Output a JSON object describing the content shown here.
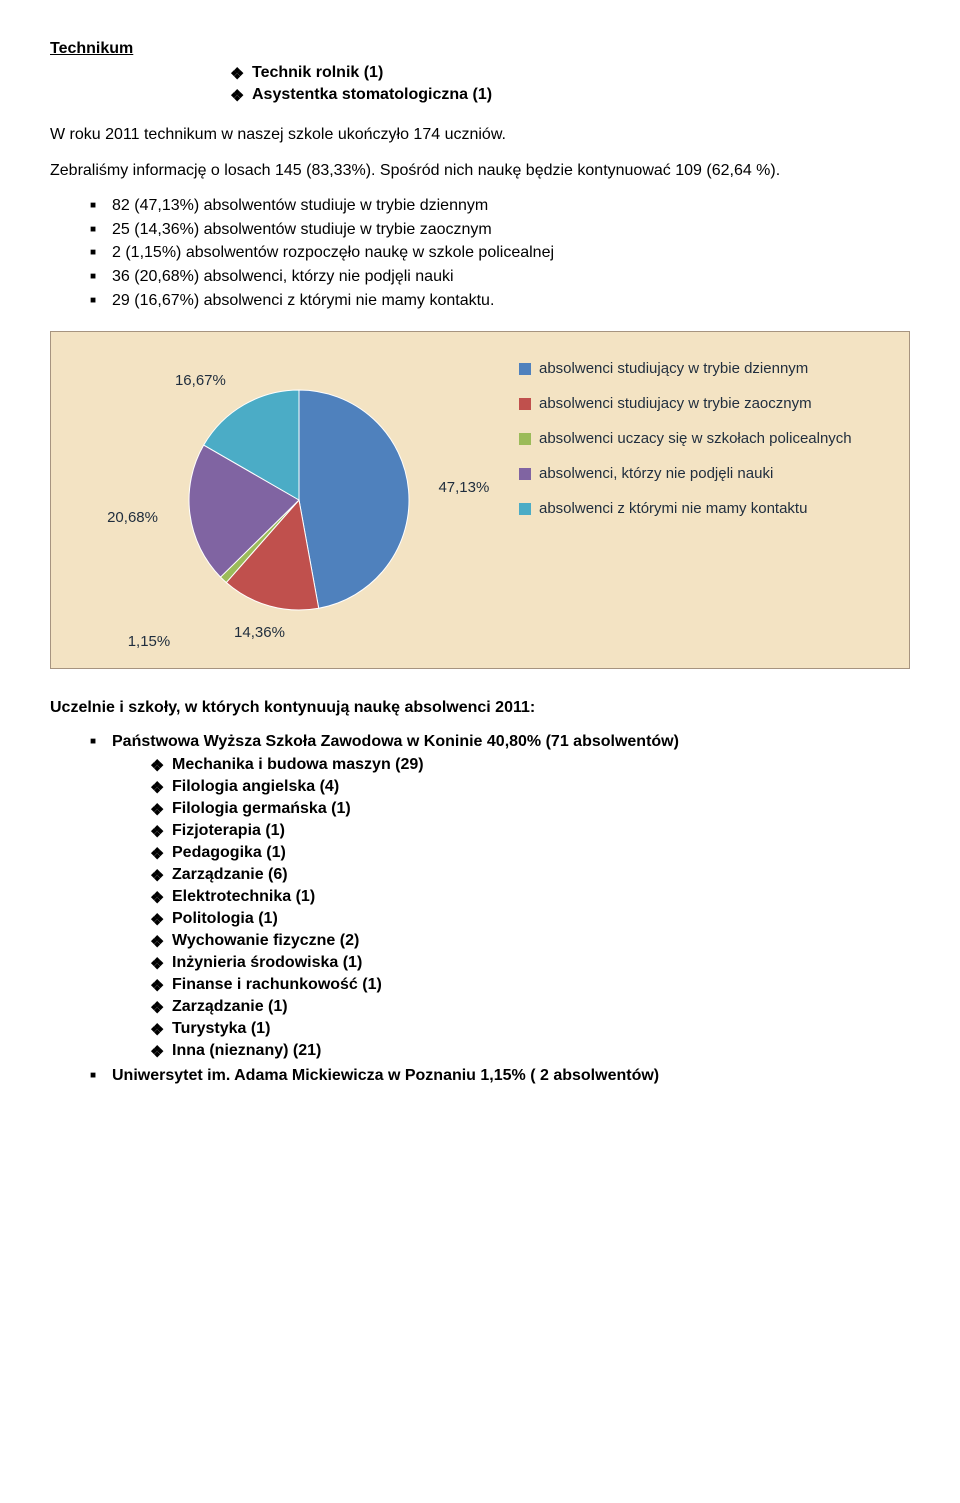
{
  "heading": "Technikum",
  "top_bullets": [
    "Technik rolnik (1)",
    "Asystentka stomatologiczna (1)"
  ],
  "para1": "W roku 2011 technikum w naszej szkole ukończyło 174 uczniów.",
  "para2": "Zebraliśmy informację o losach 145 (83,33%). Spośród nich naukę będzie kontynuować  109 (62,64 %).",
  "stats_bullets": [
    "82 (47,13%) absolwentów  studiuje w trybie dziennym",
    "25 (14,36%) absolwentów  studiuje w trybie zaocznym",
    "2 (1,15%)  absolwentów rozpoczęło naukę w szkole policealnej",
    "36 (20,68%) absolwenci, którzy nie podjęli nauki",
    "29 (16,67%) absolwenci z którymi nie mamy kontaktu."
  ],
  "chart": {
    "type": "pie",
    "background_color": "#f3e3c3",
    "border_color": "#a69480",
    "slices": [
      {
        "label": "47,13%",
        "value": 47.13,
        "color": "#4f81bd",
        "legend": "absolwenci studiujący w trybie dziennym"
      },
      {
        "label": "14,36%",
        "value": 14.36,
        "color": "#c0504d",
        "legend": "absolwenci studiujacy w trybie zaocznym"
      },
      {
        "label": "1,15%",
        "value": 1.15,
        "color": "#9bbb59",
        "legend": "absolwenci uczacy się w szkołach policealnych"
      },
      {
        "label": "20,68%",
        "value": 20.68,
        "color": "#8064a2",
        "legend": "absolwenci, którzy nie podjęli nauki"
      },
      {
        "label": "16,67%",
        "value": 16.67,
        "color": "#4bacc6",
        "legend": "absolwenci z którymi nie mamy kontaktu"
      }
    ],
    "label_fontsize": 15,
    "label_color": "#1f2d3d",
    "legend_fontsize": 15
  },
  "section_title": "Uczelnie i szkoły, w których kontynuują naukę absolwenci 2011:",
  "uni1_title": "Państwowa Wyższa Szkoła Zawodowa w Koninie 40,80% (71 absolwentów)",
  "uni1_subs": [
    "Mechanika i budowa maszyn (29)",
    "Filologia angielska  (4)",
    "Filologia germańska (1)",
    "Fizjoterapia (1)",
    "Pedagogika (1)",
    "Zarządzanie (6)",
    "Elektrotechnika (1)",
    "Politologia (1)",
    "Wychowanie fizyczne (2)",
    "Inżynieria środowiska (1)",
    "Finanse i rachunkowość (1)",
    "Zarządzanie (1)",
    "Turystyka (1)",
    "Inna (nieznany) (21)"
  ],
  "uni2_title": "Uniwersytet im. Adama Mickiewicza w Poznaniu 1,15% ( 2 absolwentów)"
}
